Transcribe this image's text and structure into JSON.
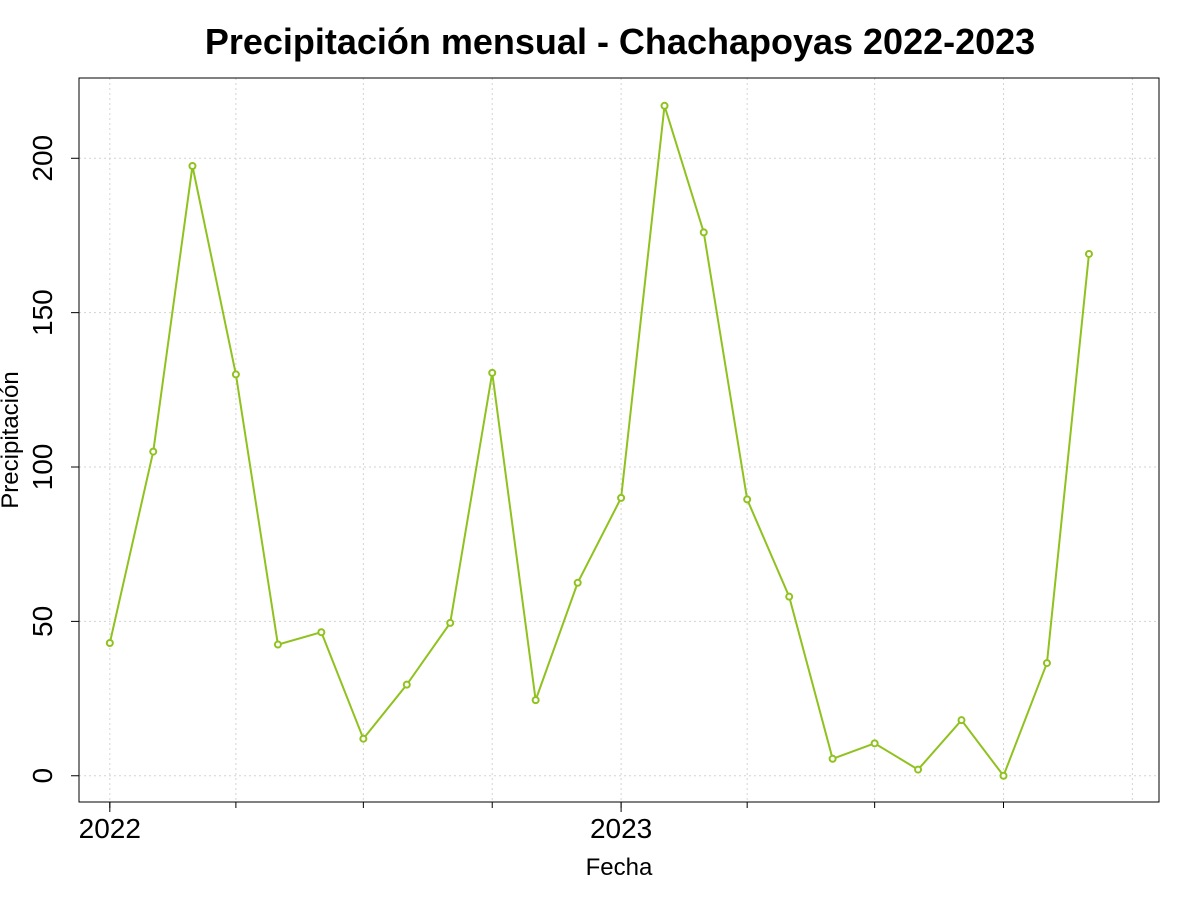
{
  "chart_data": {
    "type": "line",
    "title": "Precipitación mensual - Chachapoyas 2022-2023",
    "xlabel": "Fecha",
    "ylabel": "Precipitación",
    "x": [
      "2022-01",
      "2022-02",
      "2022-03",
      "2022-04",
      "2022-05",
      "2022-06",
      "2022-07",
      "2022-08",
      "2022-09",
      "2022-10",
      "2022-11",
      "2022-12",
      "2023-01",
      "2023-02",
      "2023-03",
      "2023-04",
      "2023-05",
      "2023-06",
      "2023-07",
      "2023-08",
      "2023-09",
      "2023-10",
      "2023-11",
      "2023-12"
    ],
    "x_ticks": [
      "2022",
      "2023"
    ],
    "xlim": [
      "2021-12-10",
      "2024-01-20"
    ],
    "series": [
      {
        "values": [
          43,
          105,
          197.5,
          130,
          42.5,
          46.5,
          12,
          29.5,
          49.5,
          130.5,
          24.5,
          62.5,
          90,
          217,
          176,
          89.5,
          58,
          5.5,
          10.5,
          2,
          18,
          0,
          36.5,
          169
        ],
        "color": "#8fc21e"
      }
    ],
    "y_ticks": [
      0,
      50,
      100,
      150,
      200
    ],
    "ylim": [
      -8.5,
      226
    ],
    "grid": true,
    "marker": "open-circle"
  }
}
